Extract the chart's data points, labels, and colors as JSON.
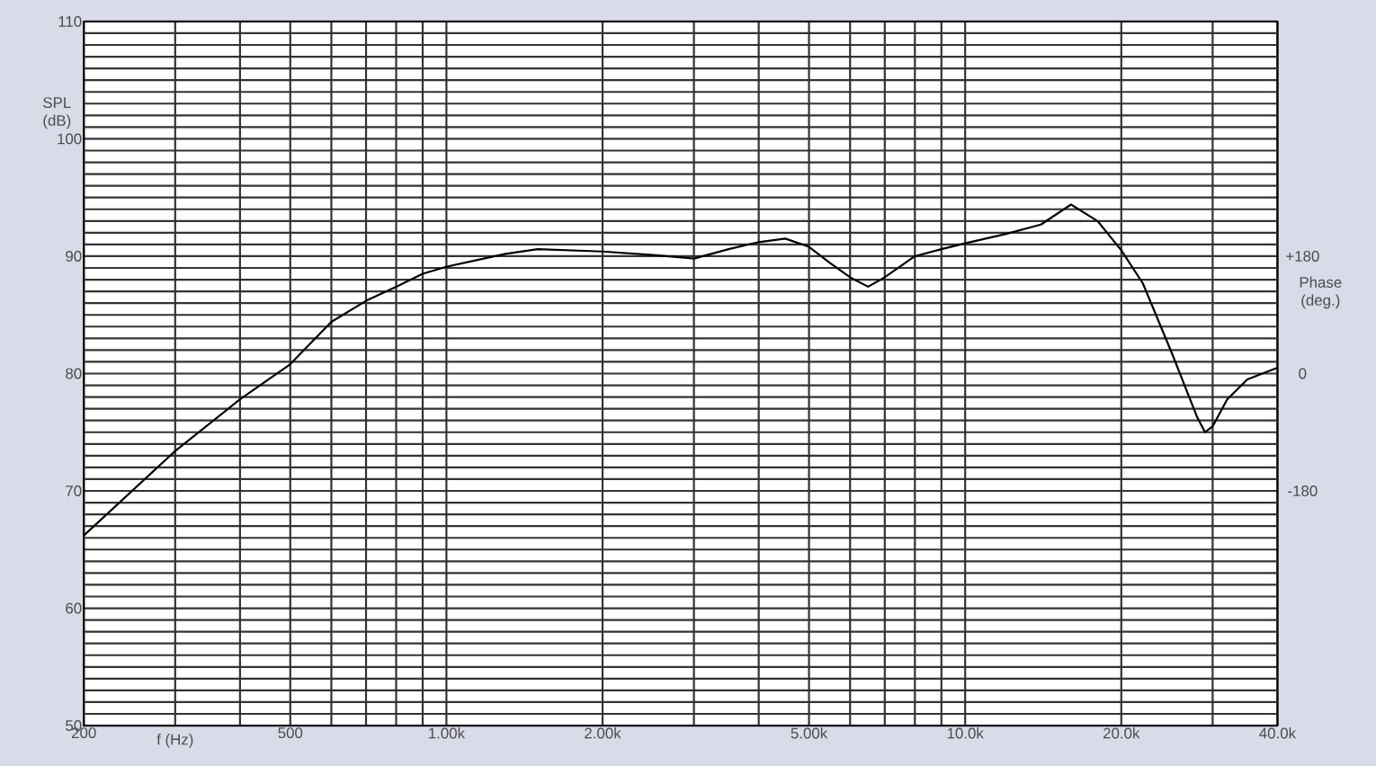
{
  "chart_data": {
    "type": "line",
    "xlabel": "f (Hz)",
    "ylabel": "SPL (dB)",
    "y2label": "Phase (deg.)",
    "log": "x",
    "grid": true,
    "marker": "none",
    "line_style": "solid",
    "color": "#000000",
    "x": [
      200,
      300,
      400,
      500,
      600,
      700,
      800,
      900,
      1000,
      1300,
      1500,
      2000,
      2500,
      3000,
      3500,
      4000,
      4500,
      5000,
      5500,
      6000,
      6500,
      7000,
      8000,
      9000,
      10000,
      12000,
      14000,
      16000,
      18000,
      20000,
      22000,
      25000,
      28000,
      29000,
      30000,
      32000,
      35000,
      40000
    ],
    "values": [
      66.2,
      73.4,
      77.8,
      80.8,
      84.4,
      86.2,
      87.4,
      88.5,
      89.1,
      90.2,
      90.6,
      90.4,
      90.1,
      89.8,
      90.6,
      91.2,
      91.5,
      90.8,
      89.4,
      88.2,
      87.4,
      88.2,
      90.0,
      90.6,
      91.1,
      91.9,
      92.7,
      94.4,
      93.0,
      90.5,
      87.7,
      81.8,
      76.3,
      75.0,
      75.5,
      77.8,
      79.5,
      80.5
    ],
    "xlim": [
      200,
      40000
    ],
    "ylim": [
      50,
      110
    ],
    "y2lim": [
      -540,
      540
    ],
    "xticks": [
      200,
      {
        "value": 300,
        "label": null
      },
      {
        "value": 400,
        "label": null
      },
      500,
      {
        "value": 600,
        "label": null
      },
      {
        "value": 700,
        "label": null
      },
      {
        "value": 800,
        "label": null
      },
      {
        "value": 900,
        "label": null
      },
      {
        "value": 1000,
        "label": "1.00k"
      },
      {
        "value": 2000,
        "label": "2.00k"
      },
      {
        "value": 3000,
        "label": null
      },
      {
        "value": 4000,
        "label": null
      },
      {
        "value": 5000,
        "label": "5.00k"
      },
      {
        "value": 6000,
        "label": null
      },
      {
        "value": 7000,
        "label": null
      },
      {
        "value": 8000,
        "label": null
      },
      {
        "value": 9000,
        "label": null
      },
      {
        "value": 10000,
        "label": "10.0k"
      },
      {
        "value": 20000,
        "label": "20.0k"
      },
      {
        "value": 30000,
        "label": null
      },
      {
        "value": 40000,
        "label": "40.0k"
      }
    ],
    "yticks": [
      50,
      {
        "value": 51,
        "label": null
      },
      {
        "value": 52,
        "label": null
      },
      {
        "value": 53,
        "label": null
      },
      {
        "value": 54,
        "label": null
      },
      {
        "value": 55,
        "label": null
      },
      {
        "value": 56,
        "label": null
      },
      {
        "value": 57,
        "label": null
      },
      {
        "value": 58,
        "label": null
      },
      {
        "value": 59,
        "label": null
      },
      60,
      {
        "value": 61,
        "label": null
      },
      {
        "value": 62,
        "label": null
      },
      {
        "value": 63,
        "label": null
      },
      {
        "value": 64,
        "label": null
      },
      {
        "value": 65,
        "label": null
      },
      {
        "value": 66,
        "label": null
      },
      {
        "value": 67,
        "label": null
      },
      {
        "value": 68,
        "label": null
      },
      {
        "value": 69,
        "label": null
      },
      70,
      {
        "value": 71,
        "label": null
      },
      {
        "value": 72,
        "label": null
      },
      {
        "value": 73,
        "label": null
      },
      {
        "value": 74,
        "label": null
      },
      {
        "value": 75,
        "label": null
      },
      {
        "value": 76,
        "label": null
      },
      {
        "value": 77,
        "label": null
      },
      {
        "value": 78,
        "label": null
      },
      {
        "value": 79,
        "label": null
      },
      80,
      {
        "value": 81,
        "label": null
      },
      {
        "value": 82,
        "label": null
      },
      {
        "value": 83,
        "label": null
      },
      {
        "value": 84,
        "label": null
      },
      {
        "value": 85,
        "label": null
      },
      {
        "value": 86,
        "label": null
      },
      {
        "value": 87,
        "label": null
      },
      {
        "value": 88,
        "label": null
      },
      {
        "value": 89,
        "label": null
      },
      90,
      {
        "value": 91,
        "label": null
      },
      {
        "value": 92,
        "label": null
      },
      {
        "value": 93,
        "label": null
      },
      {
        "value": 94,
        "label": null
      },
      {
        "value": 95,
        "label": null
      },
      {
        "value": 96,
        "label": null
      },
      {
        "value": 97,
        "label": null
      },
      {
        "value": 98,
        "label": null
      },
      {
        "value": 99,
        "label": null
      },
      100,
      {
        "value": 101,
        "label": null
      },
      {
        "value": 102,
        "label": null
      },
      {
        "value": 103,
        "label": null
      },
      {
        "value": 104,
        "label": null
      },
      {
        "value": 105,
        "label": null
      },
      {
        "value": 106,
        "label": null
      },
      {
        "value": 107,
        "label": null
      },
      {
        "value": 108,
        "label": null
      },
      {
        "value": 109,
        "label": null
      },
      110
    ],
    "y2ticks": [
      -180,
      0,
      {
        "value": 180,
        "label": "+180"
      }
    ]
  }
}
